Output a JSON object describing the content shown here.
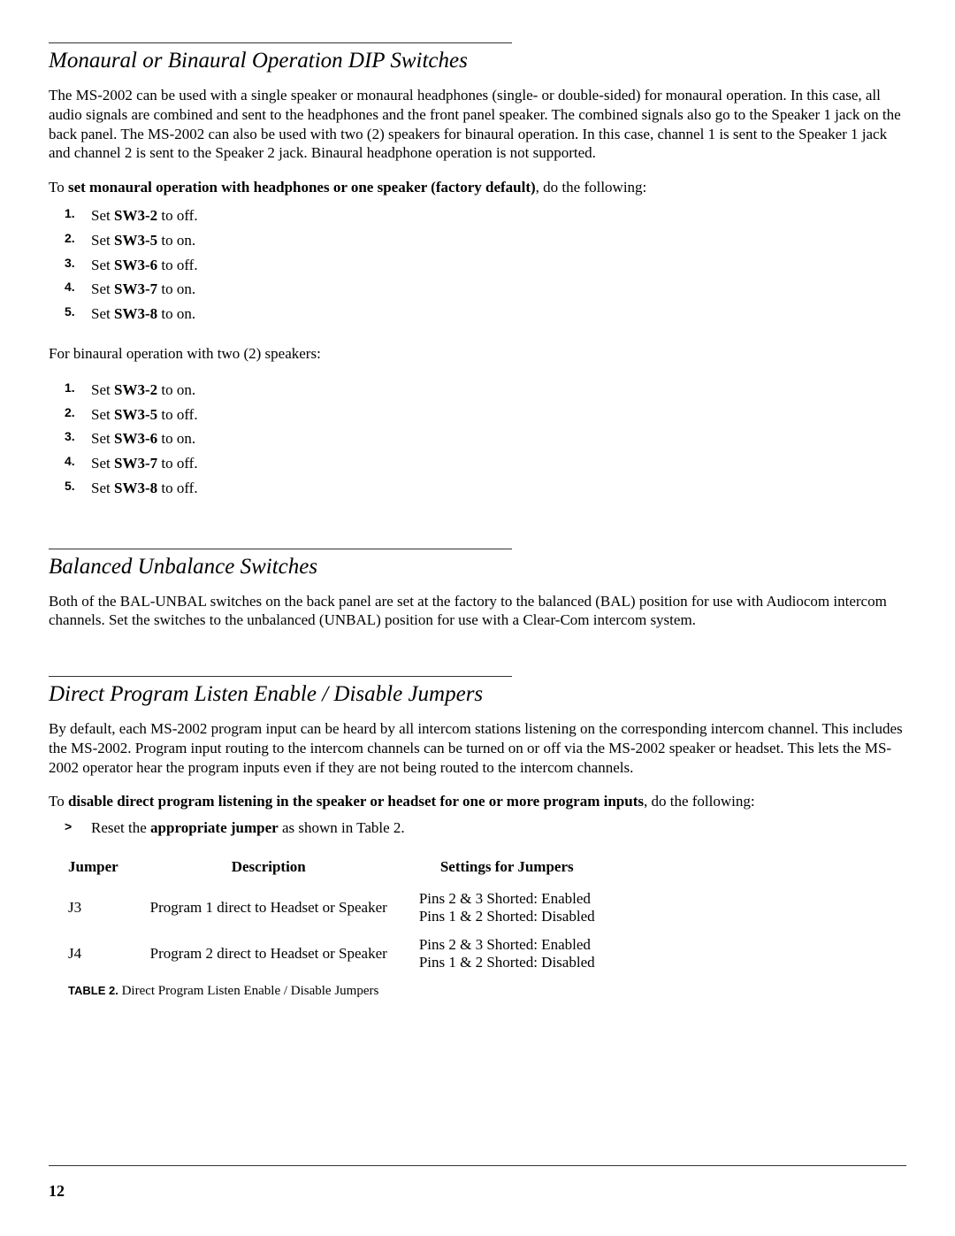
{
  "section1": {
    "heading": "Monaural or Binaural Operation DIP Switches",
    "para1": "The MS-2002 can be used with a single speaker or monaural headphones (single- or double-sided) for monaural operation. In this case, all audio signals are combined and sent to the headphones and the front panel speaker. The combined signals also go to the Speaker 1 jack on the back panel. The MS-2002 can also be used with two (2) speakers for binaural operation. In this case, channel 1 is sent to the Speaker 1 jack and channel 2 is sent to the Speaker 2 jack. Binaural headphone operation is not supported.",
    "instr1_pre": "To ",
    "instr1_bold": "set monaural operation with headphones or one speaker (factory default)",
    "instr1_post": ", do the following:",
    "listA": [
      {
        "pre": "Set ",
        "b": "SW3-2",
        "post": " to off."
      },
      {
        "pre": "Set ",
        "b": "SW3-5",
        "post": " to on."
      },
      {
        "pre": "Set ",
        "b": "SW3-6",
        "post": " to off."
      },
      {
        "pre": "Set ",
        "b": "SW3-7",
        "post": " to on."
      },
      {
        "pre": "Set ",
        "b": "SW3-8",
        "post": " to on."
      }
    ],
    "para2": "For binaural operation with two (2) speakers:",
    "listB": [
      {
        "pre": "Set ",
        "b": "SW3-2",
        "post": " to on."
      },
      {
        "pre": "Set ",
        "b": "SW3-5",
        "post": " to off."
      },
      {
        "pre": "Set ",
        "b": "SW3-6",
        "post": " to on."
      },
      {
        "pre": "Set ",
        "b": "SW3-7",
        "post": " to off."
      },
      {
        "pre": "Set ",
        "b": "SW3-8",
        "post": " to off."
      }
    ]
  },
  "section2": {
    "heading": "Balanced Unbalance Switches",
    "para": "Both of the BAL-UNBAL switches on the back panel are set at the factory to the balanced (BAL) position for use with Audiocom intercom channels. Set the switches to the unbalanced (UNBAL) position for use with a Clear-Com intercom system."
  },
  "section3": {
    "heading": "Direct Program Listen Enable / Disable Jumpers",
    "para": "By default, each MS-2002 program input can be heard by all intercom stations listening on the corresponding intercom channel. This includes the MS-2002. Program input routing to the intercom channels can be turned on or off via the MS-2002 speaker or headset. This lets the MS-2002 operator hear the program inputs even if they are not being routed to the intercom channels.",
    "instr_pre": "To ",
    "instr_bold": "disable direct program listening in the speaker or headset for one or more program inputs",
    "instr_post": ", do the following:",
    "bullet_pre": "Reset the ",
    "bullet_bold": "appropriate jumper",
    "bullet_post": " as shown in Table 2.",
    "table": {
      "col1": "Jumper",
      "col2": "Description",
      "col3": "Settings for Jumpers",
      "rows": [
        {
          "jumper": "J3",
          "desc": "Program 1 direct to Headset or Speaker",
          "s1": "Pins 2 & 3 Shorted: Enabled",
          "s2": "Pins 1 & 2 Shorted: Disabled"
        },
        {
          "jumper": "J4",
          "desc": "Program 2 direct to Headset or Speaker",
          "s1": "Pins 2 & 3 Shorted: Enabled",
          "s2": "Pins 1 & 2 Shorted: Disabled"
        }
      ],
      "caption_label": "TABLE 2.",
      "caption_text": " Direct Program Listen Enable / Disable Jumpers"
    }
  },
  "pageNumber": "12"
}
